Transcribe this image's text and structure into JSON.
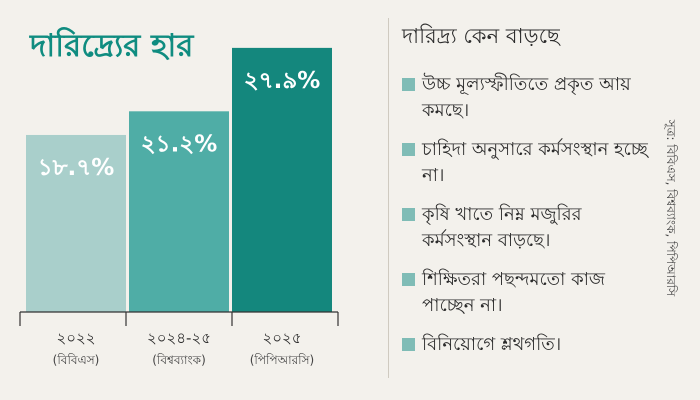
{
  "title": "দারিদ্র্যের হার",
  "chart_data": {
    "type": "bar",
    "categories": [
      "২০২২",
      "২০২৪-২৫",
      "২০২৫"
    ],
    "category_sources": [
      "(বিবিএস)",
      "(বিশ্বব্যাংক)",
      "(পিপিআরসি)"
    ],
    "values": [
      18.7,
      21.2,
      27.9
    ],
    "value_labels": [
      "১৮.৭%",
      "২১.২%",
      "২৭.৯%"
    ],
    "bar_colors": [
      "#a9cfcb",
      "#4fada6",
      "#14877d"
    ],
    "ylim": [
      0,
      30
    ]
  },
  "reasons": {
    "title": "দারিদ্র্য কেন বাড়ছে",
    "bullet_color": "#7fbcb6",
    "items": [
      "উচ্চ মূল্যস্ফীতিতে প্রকৃত আয় কমছে।",
      "চাহিদা অনুসারে কর্মসংস্থান হচ্ছে না।",
      "কৃষি খাতে নিম্ন মজুরির কর্মসংস্থান বাড়ছে।",
      "শিক্ষিতরা পছন্দমতো কাজ পাচ্ছেন না।",
      "বিনিয়োগে শ্লথগতি।"
    ]
  },
  "source": "সূত্র: বিবিএস, বিশ্বব্যাংক, পিপিআরসি"
}
